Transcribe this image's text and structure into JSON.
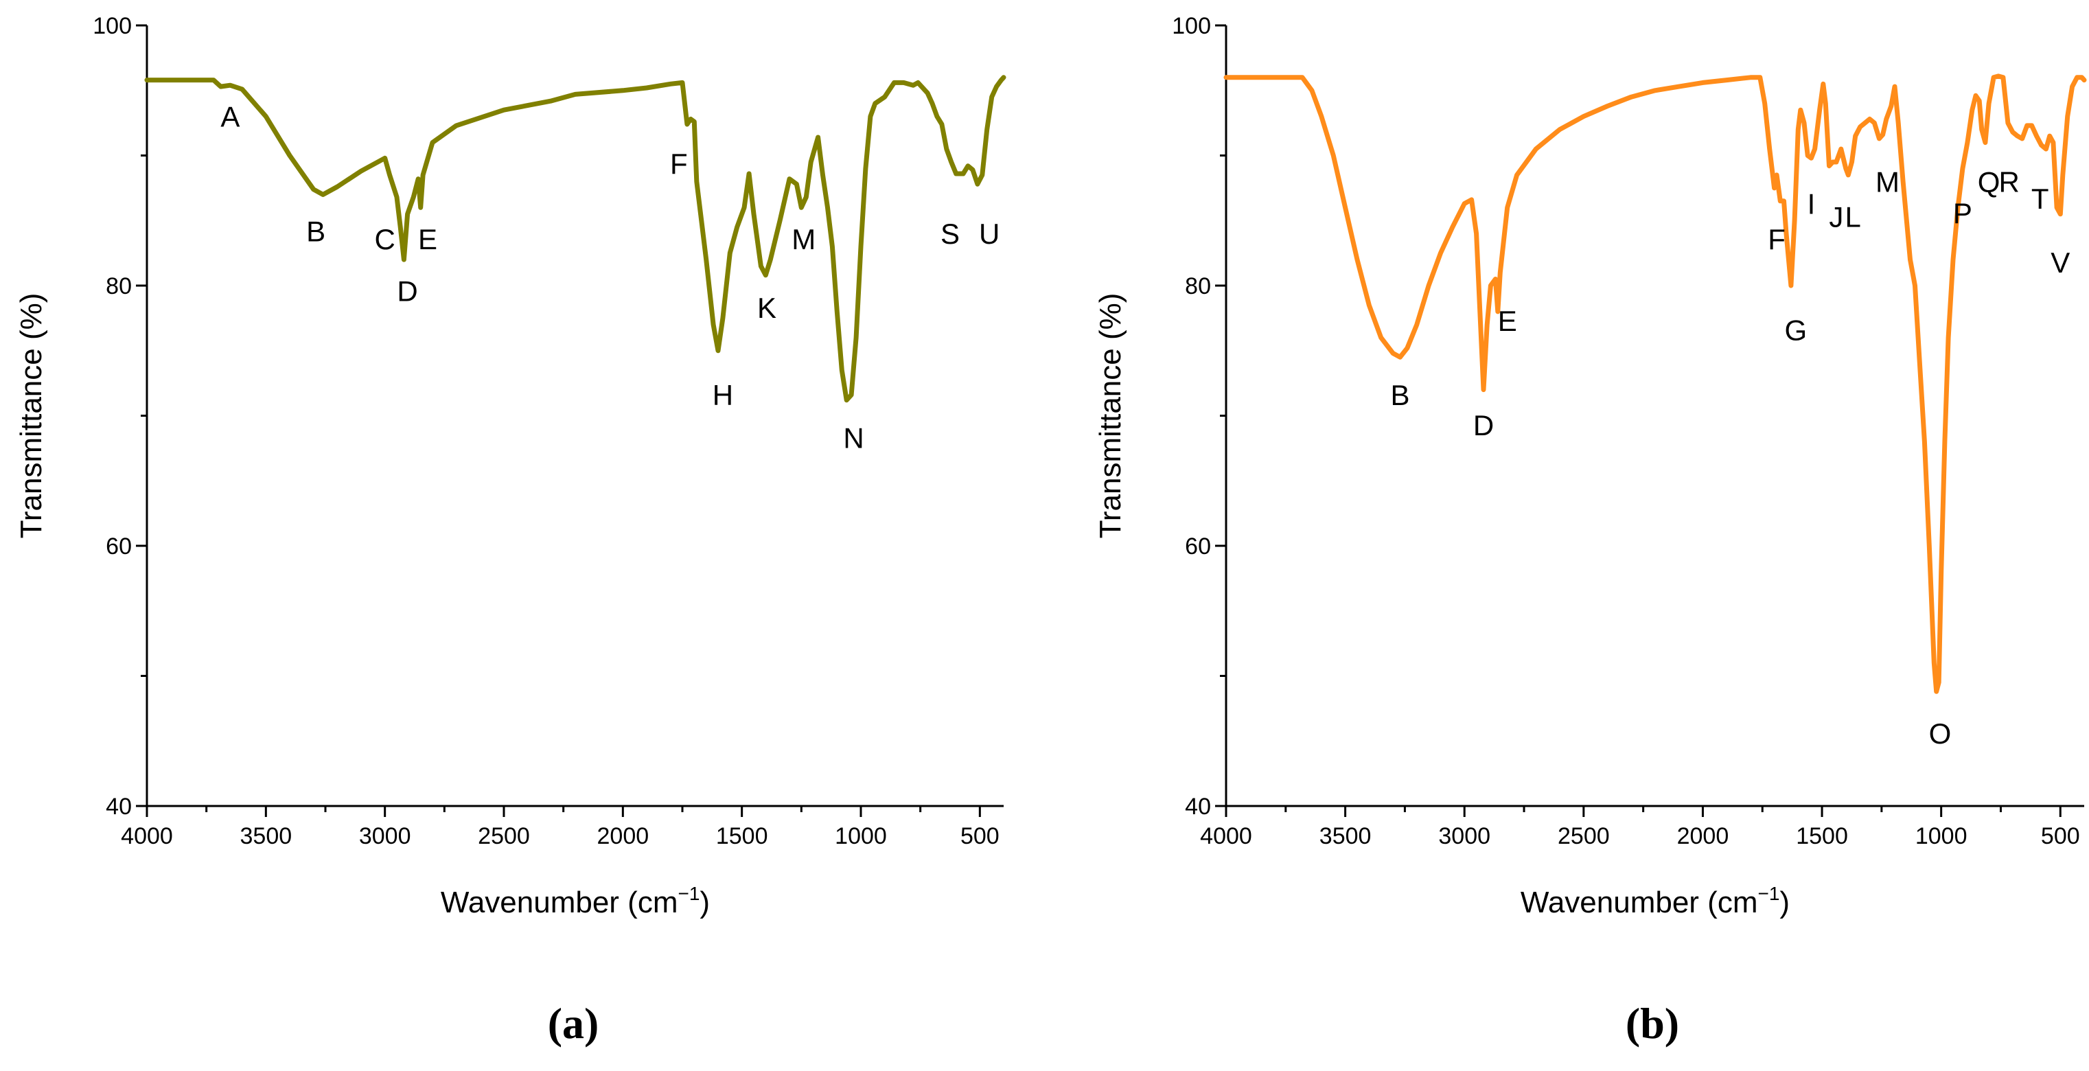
{
  "chart_data": [
    {
      "type": "line",
      "panel": "(a)",
      "color": "#808000",
      "xlabel": "Wavenumber (cm",
      "xlabel_sup": "−1",
      "xlabel_end": ")",
      "ylabel": "Transmittance (%)",
      "xlim": [
        4000,
        400
      ],
      "ylim": [
        40,
        100
      ],
      "xticks": [
        4000,
        3500,
        3000,
        2500,
        2000,
        1500,
        1000,
        500
      ],
      "yticks": [
        40,
        60,
        80,
        100
      ],
      "series": [
        {
          "name": "(a)",
          "points": [
            [
              4000,
              95.8
            ],
            [
              3780,
              95.8
            ],
            [
              3720,
              95.8
            ],
            [
              3690,
              95.3
            ],
            [
              3650,
              95.4
            ],
            [
              3600,
              95.1
            ],
            [
              3500,
              93.0
            ],
            [
              3400,
              90.0
            ],
            [
              3300,
              87.4
            ],
            [
              3260,
              87.0
            ],
            [
              3200,
              87.6
            ],
            [
              3100,
              88.8
            ],
            [
              3000,
              89.8
            ],
            [
              2980,
              88.5
            ],
            [
              2950,
              86.8
            ],
            [
              2935,
              84.5
            ],
            [
              2920,
              82.0
            ],
            [
              2905,
              85.5
            ],
            [
              2880,
              86.8
            ],
            [
              2860,
              88.2
            ],
            [
              2850,
              86.0
            ],
            [
              2840,
              88.5
            ],
            [
              2800,
              91.0
            ],
            [
              2700,
              92.3
            ],
            [
              2500,
              93.5
            ],
            [
              2300,
              94.2
            ],
            [
              2200,
              94.7
            ],
            [
              2000,
              95.0
            ],
            [
              1900,
              95.2
            ],
            [
              1800,
              95.5
            ],
            [
              1750,
              95.6
            ],
            [
              1730,
              92.4
            ],
            [
              1715,
              92.8
            ],
            [
              1700,
              92.6
            ],
            [
              1690,
              88.0
            ],
            [
              1650,
              82.0
            ],
            [
              1620,
              77.0
            ],
            [
              1600,
              75.0
            ],
            [
              1580,
              77.5
            ],
            [
              1550,
              82.5
            ],
            [
              1520,
              84.5
            ],
            [
              1490,
              86.0
            ],
            [
              1470,
              88.6
            ],
            [
              1450,
              85.5
            ],
            [
              1420,
              81.5
            ],
            [
              1400,
              80.8
            ],
            [
              1380,
              82.0
            ],
            [
              1340,
              85.0
            ],
            [
              1300,
              88.2
            ],
            [
              1270,
              87.8
            ],
            [
              1250,
              86.0
            ],
            [
              1230,
              86.8
            ],
            [
              1210,
              89.5
            ],
            [
              1180,
              91.4
            ],
            [
              1160,
              88.5
            ],
            [
              1140,
              86.0
            ],
            [
              1120,
              83.0
            ],
            [
              1100,
              78.0
            ],
            [
              1080,
              73.5
            ],
            [
              1060,
              71.2
            ],
            [
              1040,
              71.6
            ],
            [
              1020,
              76.0
            ],
            [
              1000,
              83.0
            ],
            [
              980,
              89.0
            ],
            [
              960,
              93.0
            ],
            [
              940,
              94.0
            ],
            [
              900,
              94.5
            ],
            [
              860,
              95.6
            ],
            [
              820,
              95.6
            ],
            [
              780,
              95.4
            ],
            [
              760,
              95.6
            ],
            [
              720,
              94.8
            ],
            [
              700,
              94.0
            ],
            [
              680,
              93.0
            ],
            [
              660,
              92.4
            ],
            [
              640,
              90.5
            ],
            [
              620,
              89.5
            ],
            [
              600,
              88.6
            ],
            [
              570,
              88.6
            ],
            [
              550,
              89.2
            ],
            [
              530,
              88.9
            ],
            [
              510,
              87.8
            ],
            [
              490,
              88.5
            ],
            [
              470,
              92.0
            ],
            [
              450,
              94.5
            ],
            [
              430,
              95.3
            ],
            [
              410,
              95.8
            ],
            [
              400,
              96.0
            ]
          ]
        }
      ],
      "peak_labels": [
        {
          "text": "A",
          "x": 3650,
          "y": 93.0
        },
        {
          "text": "B",
          "x": 3290,
          "y": 84.2
        },
        {
          "text": "C",
          "x": 3000,
          "y": 83.6
        },
        {
          "text": "D",
          "x": 2905,
          "y": 79.6
        },
        {
          "text": "E",
          "x": 2820,
          "y": 83.6
        },
        {
          "text": "F",
          "x": 1765,
          "y": 89.4
        },
        {
          "text": "H",
          "x": 1580,
          "y": 71.6
        },
        {
          "text": "K",
          "x": 1395,
          "y": 78.3
        },
        {
          "text": "M",
          "x": 1240,
          "y": 83.6
        },
        {
          "text": "N",
          "x": 1030,
          "y": 68.3
        },
        {
          "text": "S",
          "x": 625,
          "y": 84.0
        },
        {
          "text": "U",
          "x": 460,
          "y": 84.0
        }
      ]
    },
    {
      "type": "line",
      "panel": "(b)",
      "color": "#FF8C1A",
      "xlabel": "Wavenumber (cm",
      "xlabel_sup": "−1",
      "xlabel_end": ")",
      "ylabel": "Transmittance (%)",
      "xlim": [
        4000,
        400
      ],
      "ylim": [
        40,
        100
      ],
      "xticks": [
        4000,
        3500,
        3000,
        2500,
        2000,
        1500,
        1000,
        500
      ],
      "yticks": [
        40,
        60,
        80,
        100
      ],
      "series": [
        {
          "name": "(b)",
          "points": [
            [
              4000,
              96.0
            ],
            [
              3800,
              96.0
            ],
            [
              3680,
              96.0
            ],
            [
              3640,
              95.0
            ],
            [
              3600,
              93.0
            ],
            [
              3550,
              90.0
            ],
            [
              3500,
              86.0
            ],
            [
              3450,
              82.0
            ],
            [
              3400,
              78.5
            ],
            [
              3350,
              76.0
            ],
            [
              3300,
              74.8
            ],
            [
              3270,
              74.5
            ],
            [
              3240,
              75.2
            ],
            [
              3200,
              77.0
            ],
            [
              3150,
              80.0
            ],
            [
              3100,
              82.5
            ],
            [
              3050,
              84.5
            ],
            [
              3000,
              86.3
            ],
            [
              2970,
              86.6
            ],
            [
              2950,
              84.0
            ],
            [
              2935,
              78.0
            ],
            [
              2920,
              72.0
            ],
            [
              2905,
              77.0
            ],
            [
              2890,
              80.0
            ],
            [
              2870,
              80.5
            ],
            [
              2860,
              78.0
            ],
            [
              2850,
              81.0
            ],
            [
              2820,
              86.0
            ],
            [
              2780,
              88.5
            ],
            [
              2700,
              90.5
            ],
            [
              2600,
              92.0
            ],
            [
              2500,
              93.0
            ],
            [
              2400,
              93.8
            ],
            [
              2300,
              94.5
            ],
            [
              2200,
              95.0
            ],
            [
              2100,
              95.3
            ],
            [
              2000,
              95.6
            ],
            [
              1900,
              95.8
            ],
            [
              1800,
              96.0
            ],
            [
              1760,
              96.0
            ],
            [
              1740,
              94.0
            ],
            [
              1720,
              90.5
            ],
            [
              1700,
              87.5
            ],
            [
              1690,
              88.5
            ],
            [
              1675,
              86.5
            ],
            [
              1660,
              86.5
            ],
            [
              1650,
              84.0
            ],
            [
              1630,
              80.0
            ],
            [
              1615,
              85.0
            ],
            [
              1600,
              92.0
            ],
            [
              1590,
              93.5
            ],
            [
              1575,
              92.5
            ],
            [
              1560,
              90.0
            ],
            [
              1545,
              89.8
            ],
            [
              1530,
              90.5
            ],
            [
              1510,
              93.5
            ],
            [
              1495,
              95.5
            ],
            [
              1485,
              94.0
            ],
            [
              1470,
              89.2
            ],
            [
              1455,
              89.5
            ],
            [
              1440,
              89.5
            ],
            [
              1420,
              90.5
            ],
            [
              1400,
              89.0
            ],
            [
              1390,
              88.5
            ],
            [
              1375,
              89.5
            ],
            [
              1360,
              91.5
            ],
            [
              1340,
              92.2
            ],
            [
              1320,
              92.5
            ],
            [
              1300,
              92.8
            ],
            [
              1280,
              92.5
            ],
            [
              1260,
              91.3
            ],
            [
              1245,
              91.6
            ],
            [
              1230,
              92.8
            ],
            [
              1210,
              93.8
            ],
            [
              1195,
              95.3
            ],
            [
              1180,
              92.5
            ],
            [
              1160,
              88.0
            ],
            [
              1130,
              82.0
            ],
            [
              1110,
              80.0
            ],
            [
              1090,
              74.0
            ],
            [
              1070,
              68.0
            ],
            [
              1050,
              60.0
            ],
            [
              1030,
              51.0
            ],
            [
              1020,
              48.8
            ],
            [
              1010,
              49.5
            ],
            [
              1000,
              58.0
            ],
            [
              985,
              68.0
            ],
            [
              970,
              76.0
            ],
            [
              950,
              82.0
            ],
            [
              930,
              86.0
            ],
            [
              910,
              89.0
            ],
            [
              890,
              91.0
            ],
            [
              870,
              93.5
            ],
            [
              855,
              94.6
            ],
            [
              840,
              94.2
            ],
            [
              830,
              92.0
            ],
            [
              815,
              91.0
            ],
            [
              800,
              94.0
            ],
            [
              780,
              96.0
            ],
            [
              760,
              96.1
            ],
            [
              740,
              96.0
            ],
            [
              720,
              92.5
            ],
            [
              700,
              91.8
            ],
            [
              680,
              91.5
            ],
            [
              660,
              91.3
            ],
            [
              640,
              92.3
            ],
            [
              620,
              92.3
            ],
            [
              600,
              91.5
            ],
            [
              580,
              90.8
            ],
            [
              560,
              90.5
            ],
            [
              545,
              91.5
            ],
            [
              530,
              91.0
            ],
            [
              515,
              86.0
            ],
            [
              500,
              85.5
            ],
            [
              490,
              88.5
            ],
            [
              470,
              93.0
            ],
            [
              450,
              95.3
            ],
            [
              430,
              96.0
            ],
            [
              410,
              96.0
            ],
            [
              400,
              95.8
            ]
          ]
        }
      ],
      "peak_labels": [
        {
          "text": "B",
          "x": 3270,
          "y": 71.6
        },
        {
          "text": "D",
          "x": 2920,
          "y": 69.3
        },
        {
          "text": "E",
          "x": 2820,
          "y": 77.3
        },
        {
          "text": "F",
          "x": 1690,
          "y": 83.6
        },
        {
          "text": "G",
          "x": 1610,
          "y": 76.6
        },
        {
          "text": "I",
          "x": 1545,
          "y": 86.3
        },
        {
          "text": "J",
          "x": 1440,
          "y": 85.3
        },
        {
          "text": "L",
          "x": 1370,
          "y": 85.3
        },
        {
          "text": "M",
          "x": 1225,
          "y": 88.0
        },
        {
          "text": "O",
          "x": 1005,
          "y": 45.6
        },
        {
          "text": "P",
          "x": 910,
          "y": 85.6
        },
        {
          "text": "Q",
          "x": 800,
          "y": 88.0
        },
        {
          "text": "R",
          "x": 715,
          "y": 88.0
        },
        {
          "text": "T",
          "x": 585,
          "y": 86.7
        },
        {
          "text": "V",
          "x": 500,
          "y": 81.8
        }
      ]
    }
  ],
  "captions": [
    "(a)",
    "(b)"
  ]
}
